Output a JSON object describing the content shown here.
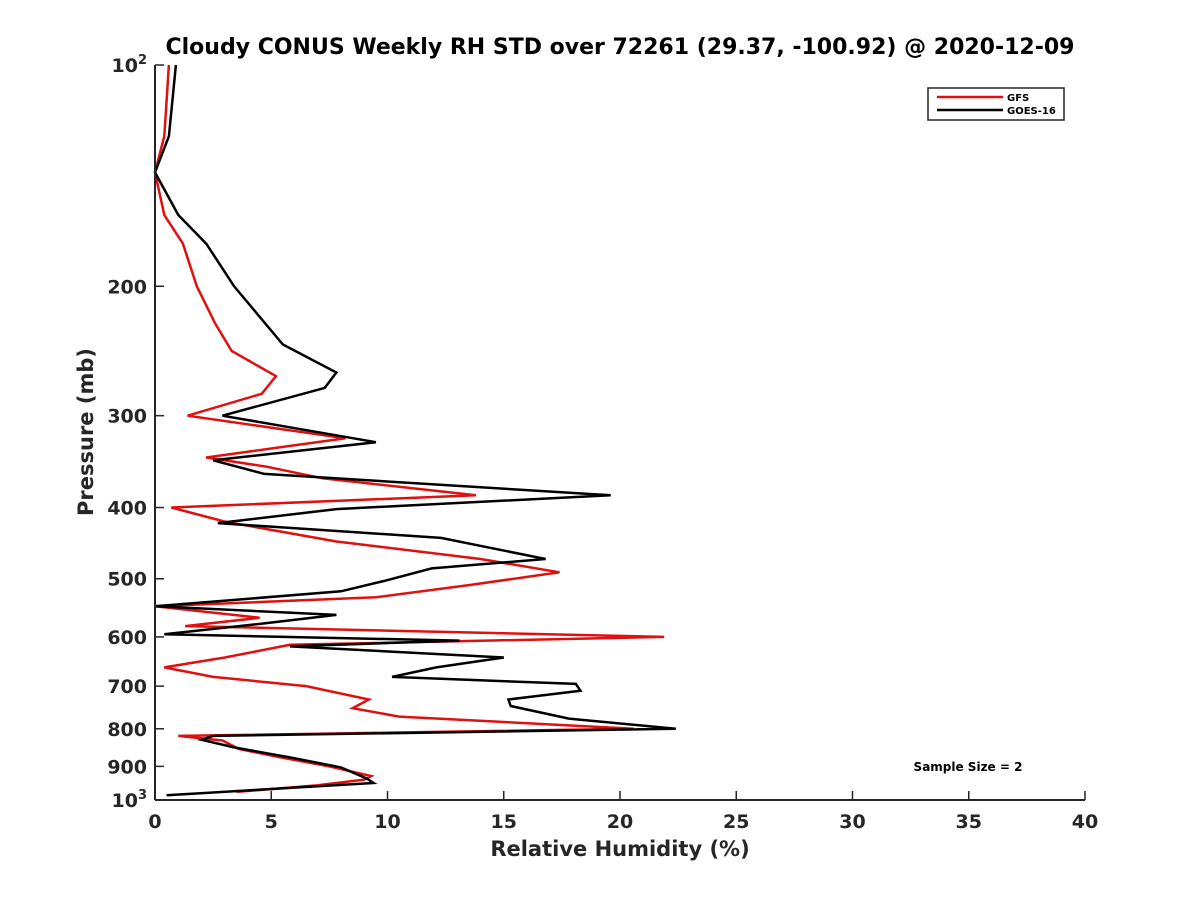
{
  "chart_data": {
    "type": "line",
    "title": "Cloudy CONUS Weekly RH STD over 72261 (29.37, -100.92) @ 2020-12-09",
    "xlabel": "Relative Humidity (%)",
    "ylabel": "Pressure (mb)",
    "xlim": [
      0,
      40
    ],
    "ylim": [
      100,
      1000
    ],
    "y_scale": "log",
    "y_reversed": true,
    "x_ticks": [
      "0",
      "5",
      "10",
      "15",
      "20",
      "25",
      "30",
      "35",
      "40"
    ],
    "y_ticks": [
      {
        "value": 100,
        "base": "10",
        "exp": "2"
      },
      {
        "value": 200,
        "label": "200"
      },
      {
        "value": 300,
        "label": "300"
      },
      {
        "value": 400,
        "label": "400"
      },
      {
        "value": 500,
        "label": "500"
      },
      {
        "value": 600,
        "label": "600"
      },
      {
        "value": 700,
        "label": "700"
      },
      {
        "value": 800,
        "label": "800"
      },
      {
        "value": 900,
        "label": "900"
      },
      {
        "value": 1000,
        "base": "10",
        "exp": "3"
      }
    ],
    "grid": false,
    "legend": {
      "position": "top-right",
      "entries": [
        "GFS",
        "GOES-16"
      ]
    },
    "annotation": "Sample Size = 2",
    "series": [
      {
        "name": "GFS",
        "color": "#e01010",
        "points": [
          [
            0.6,
            100
          ],
          [
            0.4,
            125
          ],
          [
            0.0,
            140
          ],
          [
            0.4,
            160
          ],
          [
            1.2,
            175
          ],
          [
            1.8,
            200
          ],
          [
            2.6,
            225
          ],
          [
            3.3,
            245
          ],
          [
            5.2,
            265
          ],
          [
            4.6,
            280
          ],
          [
            1.4,
            300
          ],
          [
            8.2,
            322
          ],
          [
            2.2,
            342
          ],
          [
            4.8,
            352
          ],
          [
            7.2,
            365
          ],
          [
            13.8,
            385
          ],
          [
            0.7,
            400
          ],
          [
            3.0,
            418
          ],
          [
            7.8,
            445
          ],
          [
            14.0,
            470
          ],
          [
            17.4,
            490
          ],
          [
            13.5,
            510
          ],
          [
            9.5,
            530
          ],
          [
            0.0,
            545
          ],
          [
            4.5,
            565
          ],
          [
            1.3,
            580
          ],
          [
            21.9,
            600
          ],
          [
            5.8,
            615
          ],
          [
            3.0,
            640
          ],
          [
            0.4,
            660
          ],
          [
            2.5,
            680
          ],
          [
            6.5,
            700
          ],
          [
            9.2,
            730
          ],
          [
            8.5,
            750
          ],
          [
            10.5,
            770
          ],
          [
            20.6,
            800
          ],
          [
            1.0,
            818
          ],
          [
            2.9,
            830
          ],
          [
            3.6,
            852
          ],
          [
            5.4,
            875
          ],
          [
            7.5,
            900
          ],
          [
            9.3,
            928
          ],
          [
            9.0,
            938
          ],
          [
            7.0,
            955
          ],
          [
            3.5,
            975
          ]
        ]
      },
      {
        "name": "GOES-16",
        "color": "#000000",
        "points": [
          [
            0.9,
            100
          ],
          [
            0.6,
            125
          ],
          [
            0.0,
            140
          ],
          [
            1.0,
            160
          ],
          [
            2.2,
            175
          ],
          [
            3.4,
            200
          ],
          [
            5.5,
            240
          ],
          [
            7.8,
            262
          ],
          [
            7.3,
            275
          ],
          [
            2.9,
            300
          ],
          [
            9.5,
            326
          ],
          [
            2.5,
            345
          ],
          [
            4.7,
            360
          ],
          [
            19.6,
            385
          ],
          [
            7.8,
            402
          ],
          [
            2.7,
            420
          ],
          [
            12.3,
            440
          ],
          [
            16.8,
            470
          ],
          [
            11.9,
            484
          ],
          [
            9.9,
            503
          ],
          [
            8.0,
            520
          ],
          [
            0.0,
            545
          ],
          [
            7.8,
            560
          ],
          [
            4.7,
            575
          ],
          [
            0.4,
            595
          ],
          [
            13.1,
            607
          ],
          [
            5.8,
            618
          ],
          [
            15.0,
            640
          ],
          [
            12.1,
            660
          ],
          [
            10.2,
            680
          ],
          [
            18.1,
            695
          ],
          [
            18.3,
            710
          ],
          [
            15.2,
            730
          ],
          [
            15.3,
            745
          ],
          [
            17.8,
            775
          ],
          [
            22.4,
            800
          ],
          [
            2.5,
            818
          ],
          [
            2.0,
            828
          ],
          [
            3.4,
            848
          ],
          [
            5.8,
            875
          ],
          [
            8.0,
            903
          ],
          [
            9.1,
            935
          ],
          [
            9.4,
            948
          ],
          [
            0.5,
            985
          ]
        ]
      }
    ]
  }
}
